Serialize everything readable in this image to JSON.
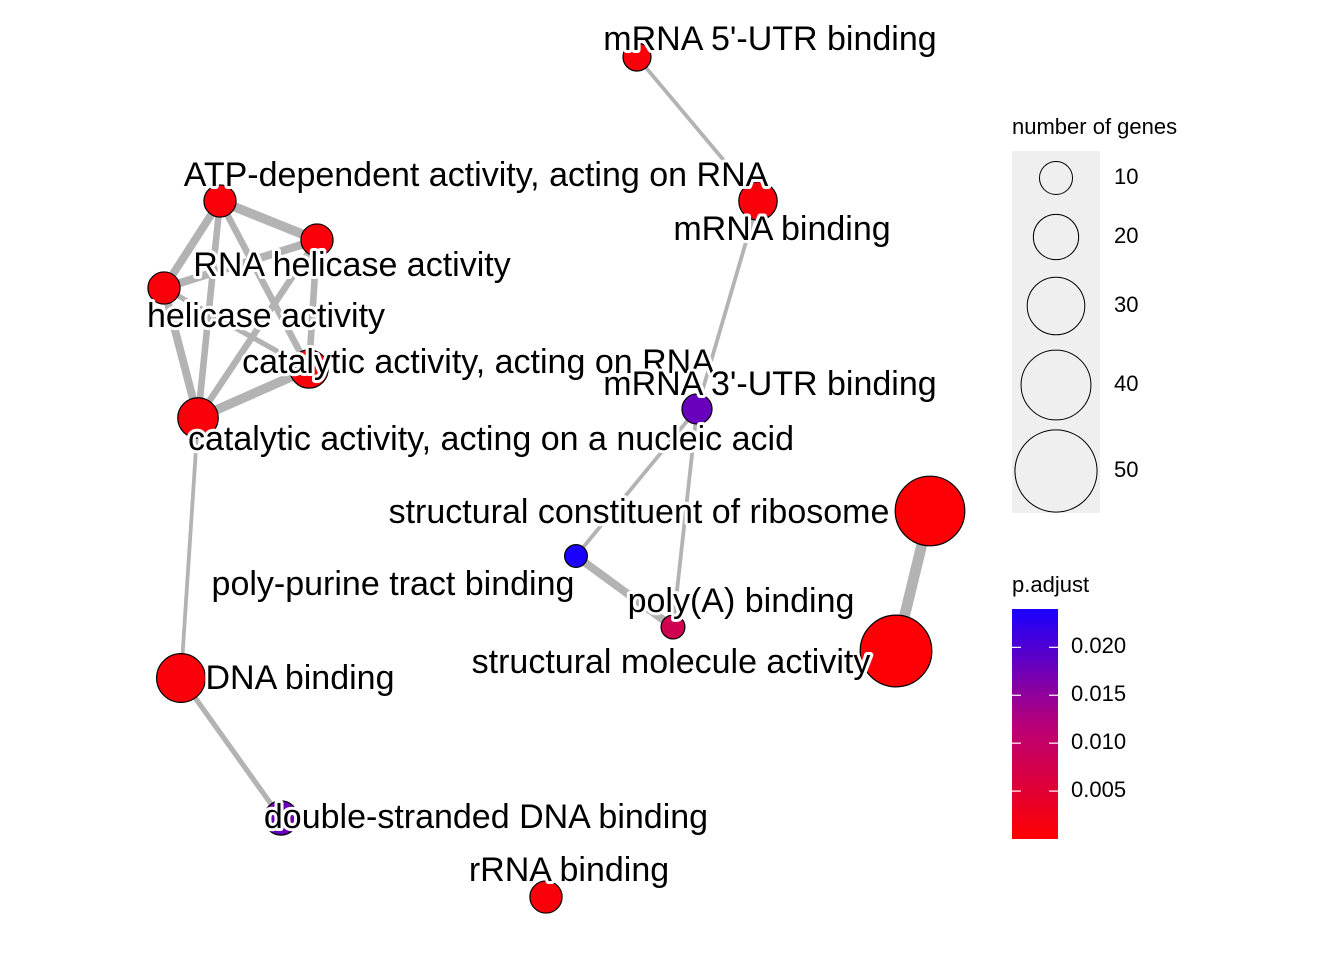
{
  "network": {
    "nodes": [
      {
        "id": "mrna5utr",
        "label": "mRNA 5'-UTR binding",
        "genes": 10,
        "p_adjust": 0.001
      },
      {
        "id": "mrnabind",
        "label": "mRNA binding",
        "genes": 20,
        "p_adjust": 0.001
      },
      {
        "id": "atpdep",
        "label": "ATP-dependent activity, acting on RNA",
        "genes": 14,
        "p_adjust": 0.001
      },
      {
        "id": "rnahel",
        "label": "RNA helicase activity",
        "genes": 14,
        "p_adjust": 0.001
      },
      {
        "id": "helicase",
        "label": "helicase activity",
        "genes": 14,
        "p_adjust": 0.001
      },
      {
        "id": "catrna",
        "label": "catalytic activity, acting on RNA",
        "genes": 20,
        "p_adjust": 0.001
      },
      {
        "id": "mrna3utr",
        "label": "mRNA 3'-UTR binding",
        "genes": 12,
        "p_adjust": 0.018
      },
      {
        "id": "catna",
        "label": "catalytic activity, acting on a nucleic acid",
        "genes": 22,
        "p_adjust": 0.001
      },
      {
        "id": "ribosome",
        "label": "structural constituent of ribosome",
        "genes": 50,
        "p_adjust": 0.0005
      },
      {
        "id": "polypurine",
        "label": "poly-purine tract binding",
        "genes": 5,
        "p_adjust": 0.024
      },
      {
        "id": "polya",
        "label": "poly(A) binding",
        "genes": 6,
        "p_adjust": 0.008
      },
      {
        "id": "structmol",
        "label": "structural molecule activity",
        "genes": 52,
        "p_adjust": 0.0005
      },
      {
        "id": "dnabind",
        "label": "DNA binding",
        "genes": 30,
        "p_adjust": 0.001
      },
      {
        "id": "dsdna",
        "label": "double-stranded DNA binding",
        "genes": 16,
        "p_adjust": 0.018
      },
      {
        "id": "rrna",
        "label": "rRNA binding",
        "genes": 14,
        "p_adjust": 0.001
      }
    ],
    "edges": [
      {
        "source": "mrna5utr",
        "target": "mrnabind",
        "weight": 2
      },
      {
        "source": "mrnabind",
        "target": "mrna3utr",
        "weight": 2
      },
      {
        "source": "mrna3utr",
        "target": "polypurine",
        "weight": 2
      },
      {
        "source": "mrna3utr",
        "target": "polya",
        "weight": 2
      },
      {
        "source": "polypurine",
        "target": "polya",
        "weight": 5
      },
      {
        "source": "ribosome",
        "target": "structmol",
        "weight": 7
      },
      {
        "source": "atpdep",
        "target": "rnahel",
        "weight": 6
      },
      {
        "source": "atpdep",
        "target": "helicase",
        "weight": 5
      },
      {
        "source": "atpdep",
        "target": "catrna",
        "weight": 4
      },
      {
        "source": "atpdep",
        "target": "catna",
        "weight": 4
      },
      {
        "source": "rnahel",
        "target": "helicase",
        "weight": 5
      },
      {
        "source": "rnahel",
        "target": "catrna",
        "weight": 4
      },
      {
        "source": "rnahel",
        "target": "catna",
        "weight": 4
      },
      {
        "source": "helicase",
        "target": "catrna",
        "weight": 3
      },
      {
        "source": "helicase",
        "target": "catna",
        "weight": 5
      },
      {
        "source": "catrna",
        "target": "catna",
        "weight": 6
      },
      {
        "source": "catna",
        "target": "dnabind",
        "weight": 2
      },
      {
        "source": "dnabind",
        "target": "dsdna",
        "weight": 3
      }
    ]
  },
  "legend_size": {
    "title": "number of genes",
    "items": [
      {
        "value": 10,
        "label": "10"
      },
      {
        "value": 20,
        "label": "20"
      },
      {
        "value": 30,
        "label": "30"
      },
      {
        "value": 40,
        "label": "40"
      },
      {
        "value": 50,
        "label": "50"
      }
    ]
  },
  "legend_color": {
    "title": "p.adjust",
    "min": 0.0,
    "max": 0.024,
    "low_color": "#ff0000",
    "mid_color": "#b8007a",
    "high_color": "#1a00ff",
    "ticks": [
      {
        "value": 0.02,
        "label": "0.020"
      },
      {
        "value": 0.015,
        "label": "0.015"
      },
      {
        "value": 0.01,
        "label": "0.010"
      },
      {
        "value": 0.005,
        "label": "0.005"
      }
    ]
  },
  "colors": {
    "edge": "#b3b3b3",
    "node_stroke": "#000000",
    "legend_panel": "#efefef"
  }
}
